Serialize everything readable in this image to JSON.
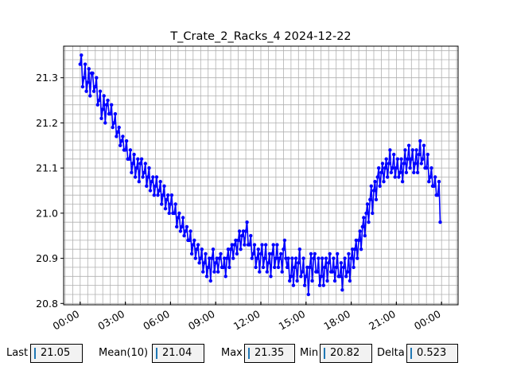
{
  "chart_data": {
    "type": "line",
    "title": "T_Crate_2_Racks_4 2024-12-22",
    "xlabel": "",
    "ylabel": "",
    "x_unit": "hours",
    "x_tick_labels": [
      "00:00",
      "03:00",
      "06:00",
      "09:00",
      "12:00",
      "15:00",
      "18:00",
      "21:00",
      "00:00"
    ],
    "x_tick_values": [
      0,
      3,
      6,
      9,
      12,
      15,
      18,
      21,
      24
    ],
    "xlim": [
      -1.1,
      25.1
    ],
    "y_tick_labels": [
      "20.8",
      "20.9",
      "21.0",
      "21.1",
      "21.2",
      "21.3"
    ],
    "y_tick_values": [
      20.8,
      20.9,
      21.0,
      21.1,
      21.2,
      21.3
    ],
    "ylim": [
      20.797,
      21.37
    ],
    "grid": true,
    "series": [
      {
        "color": "#0000ff",
        "marker": "circle",
        "x": [
          0,
          0.25,
          0.5,
          0.75,
          1,
          1.25,
          1.5,
          1.75,
          2,
          2.25,
          2.5,
          2.75,
          3,
          3.25,
          3.5,
          3.75,
          4,
          4.25,
          4.5,
          4.75,
          5,
          5.25,
          5.5,
          5.75,
          6,
          6.25,
          6.5,
          6.75,
          7,
          7.25,
          7.5,
          7.75,
          8,
          8.25,
          8.5,
          8.75,
          9,
          9.25,
          9.5,
          9.75,
          10,
          10.25,
          10.5,
          10.75,
          11,
          11.25,
          11.5,
          11.75,
          12,
          12.25,
          12.5,
          12.75,
          13,
          13.25,
          13.5,
          13.75,
          14,
          14.25,
          14.5,
          14.75,
          15,
          15.25,
          15.5,
          15.75,
          16,
          16.25,
          16.5,
          16.75,
          17,
          17.25,
          17.5,
          17.75,
          18,
          18.25,
          18.5,
          18.75,
          19,
          19.25,
          19.5,
          19.75,
          20,
          20.25,
          20.5,
          20.75,
          21,
          21.25,
          21.5,
          21.75,
          22,
          22.25,
          22.5,
          22.75,
          23,
          23.25,
          23.5,
          23.75
        ],
        "y": [
          21.33,
          21.3,
          21.29,
          21.31,
          21.28,
          21.25,
          21.23,
          21.24,
          21.22,
          21.2,
          21.18,
          21.16,
          21.14,
          21.12,
          21.11,
          21.1,
          21.11,
          21.09,
          21.08,
          21.07,
          21.06,
          21.05,
          21.04,
          21.03,
          21.02,
          21.0,
          20.99,
          20.97,
          20.96,
          20.94,
          20.93,
          20.92,
          20.9,
          20.89,
          20.88,
          20.9,
          20.89,
          20.9,
          20.88,
          20.9,
          20.92,
          20.93,
          20.94,
          20.95,
          20.96,
          20.93,
          20.91,
          20.9,
          20.91,
          20.9,
          20.89,
          20.91,
          20.9,
          20.9,
          20.92,
          20.88,
          20.86,
          20.88,
          20.89,
          20.87,
          20.86,
          20.88,
          20.9,
          20.87,
          20.86,
          20.88,
          20.89,
          20.87,
          20.88,
          20.86,
          20.88,
          20.87,
          20.9,
          20.92,
          20.94,
          20.97,
          21.0,
          21.03,
          21.05,
          21.08,
          21.09,
          21.1,
          21.11,
          21.1,
          21.1,
          21.09,
          21.11,
          21.12,
          21.12,
          21.11,
          21.13,
          21.12,
          21.1,
          21.08,
          21.06,
          21.04
        ],
        "y_max": [
          21.35,
          21.33,
          21.32,
          21.31,
          21.3,
          21.27,
          21.26,
          21.25,
          21.24,
          21.22,
          21.19,
          21.17,
          21.16,
          21.14,
          21.13,
          21.12,
          21.12,
          21.11,
          21.1,
          21.08,
          21.08,
          21.07,
          21.06,
          21.04,
          21.04,
          21.02,
          21.0,
          20.99,
          20.97,
          20.96,
          20.94,
          20.93,
          20.92,
          20.91,
          20.9,
          20.92,
          20.9,
          20.91,
          20.9,
          20.92,
          20.93,
          20.94,
          20.96,
          20.96,
          20.98,
          20.95,
          20.93,
          20.92,
          20.93,
          20.93,
          20.91,
          20.93,
          20.93,
          20.91,
          20.94,
          20.9,
          20.9,
          20.9,
          20.92,
          20.9,
          20.88,
          20.91,
          20.91,
          20.9,
          20.9,
          20.9,
          20.91,
          20.9,
          20.91,
          20.89,
          20.9,
          20.91,
          20.92,
          20.94,
          20.96,
          20.99,
          21.02,
          21.06,
          21.07,
          21.1,
          21.11,
          21.12,
          21.14,
          21.13,
          21.12,
          21.12,
          21.14,
          21.15,
          21.14,
          21.14,
          21.16,
          21.15,
          21.13,
          21.1,
          21.08,
          21.07
        ],
        "y_min": [
          21.28,
          21.27,
          21.26,
          21.27,
          21.24,
          21.21,
          21.2,
          21.22,
          21.19,
          21.17,
          21.15,
          21.14,
          21.12,
          21.09,
          21.08,
          21.07,
          21.08,
          21.06,
          21.05,
          21.04,
          21.04,
          21.02,
          21.01,
          21.0,
          21.0,
          20.97,
          20.96,
          20.95,
          20.94,
          20.91,
          20.9,
          20.89,
          20.87,
          20.86,
          20.85,
          20.87,
          20.87,
          20.88,
          20.86,
          20.88,
          20.9,
          20.91,
          20.92,
          20.93,
          20.93,
          20.9,
          20.88,
          20.87,
          20.88,
          20.87,
          20.86,
          20.88,
          20.88,
          20.87,
          20.9,
          20.85,
          20.84,
          20.85,
          20.86,
          20.84,
          20.82,
          20.85,
          20.87,
          20.84,
          20.84,
          20.85,
          20.87,
          20.85,
          20.86,
          20.83,
          20.86,
          20.85,
          20.88,
          20.9,
          20.92,
          20.95,
          20.98,
          21.0,
          21.03,
          21.06,
          21.07,
          21.08,
          21.09,
          21.08,
          21.08,
          21.07,
          21.09,
          21.1,
          21.09,
          21.09,
          21.11,
          21.1,
          21.07,
          21.06,
          21.04,
          20.98
        ]
      }
    ]
  },
  "stats": {
    "last_label": "Last",
    "last_value": "21.05",
    "mean_label": "Mean(10)",
    "mean_value": "21.04",
    "max_label": "Max",
    "max_value": "21.35",
    "min_label": "Min",
    "min_value": "20.82",
    "delta_label": "Delta",
    "delta_value": "0.523"
  }
}
